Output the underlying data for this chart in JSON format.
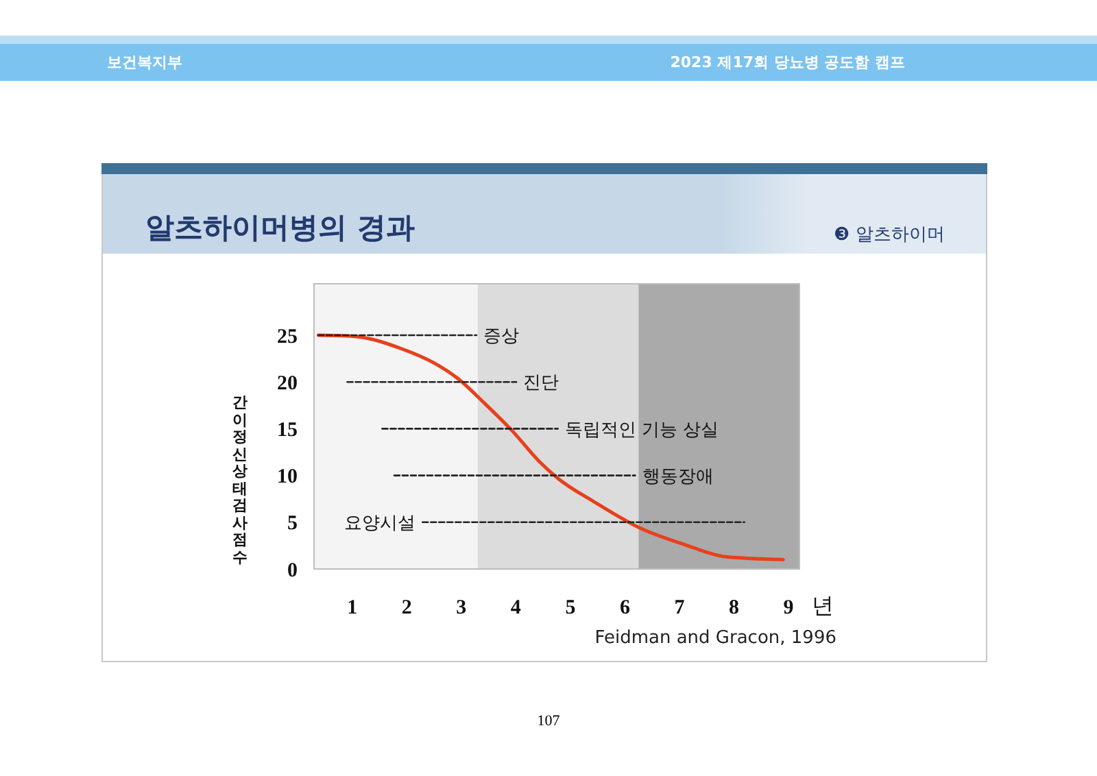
{
  "chart_data": {
    "type": "line",
    "title": "알츠하이머병의 경과",
    "subtitle": "❸ 알츠하이머",
    "xlabel": "년",
    "ylabel": "간이정신상태검사점수",
    "xlim": [
      0.3,
      9.2
    ],
    "xticks": [
      1,
      2,
      3,
      4,
      5,
      6,
      7,
      8,
      9
    ],
    "ylim": [
      0,
      30.5
    ],
    "yticks": [
      0,
      5,
      10,
      15,
      20,
      25
    ],
    "grid": false,
    "legend": false,
    "marker": "none",
    "series": [
      {
        "color": "#e8401c",
        "line_style": "solid",
        "x": [
          0.38,
          1.0,
          1.93,
          2.51,
          2.93,
          3.43,
          3.93,
          4.43,
          4.77,
          5.43,
          6.27,
          7.1,
          7.86,
          8.9
        ],
        "values": [
          25,
          24.9,
          23.5,
          22,
          20.4,
          17.7,
          14.8,
          11.5,
          9.7,
          7.2,
          4.4,
          2.6,
          1.3,
          1.0
        ]
      },
      {
        "color": "#222222",
        "line_style": "dashed",
        "x": [
          0.38,
          3.28
        ],
        "values": [
          25,
          25
        ]
      },
      {
        "color": "#222222",
        "line_style": "dashed",
        "x": [
          0.91,
          4.01
        ],
        "values": [
          20,
          20
        ]
      },
      {
        "color": "#222222",
        "line_style": "dashed",
        "x": [
          1.55,
          4.77
        ],
        "values": [
          15,
          15
        ]
      },
      {
        "color": "#222222",
        "line_style": "dashed",
        "x": [
          1.77,
          6.19
        ],
        "values": [
          10,
          10
        ]
      },
      {
        "color": "#222222",
        "line_style": "dashed",
        "x": [
          2.29,
          8.19
        ],
        "values": [
          5,
          5
        ]
      }
    ],
    "bands": [
      {
        "axis": "x",
        "from": 0.3,
        "to": 3.3,
        "color": "#f4f4f4"
      },
      {
        "axis": "x",
        "from": 3.3,
        "to": 6.25,
        "color": "#dcdcdc"
      },
      {
        "axis": "x",
        "from": 6.25,
        "to": 9.2,
        "color": "#aaaaaa"
      }
    ],
    "annotations": [
      "보건복지부",
      "2023 제17회 당뇨병 공도함 캠프",
      "Feidman and Gracon, 1996",
      "107",
      {
        "text": "증상",
        "x": 3.28,
        "y": 25
      },
      {
        "text": "진단",
        "x": 4.01,
        "y": 20
      },
      {
        "text": "독립적인 기능 상실",
        "x": 4.77,
        "y": 15
      },
      {
        "text": "행동장애",
        "x": 6.19,
        "y": 10
      },
      {
        "text": "요양시설",
        "x": 2.29,
        "y": 5
      }
    ]
  }
}
